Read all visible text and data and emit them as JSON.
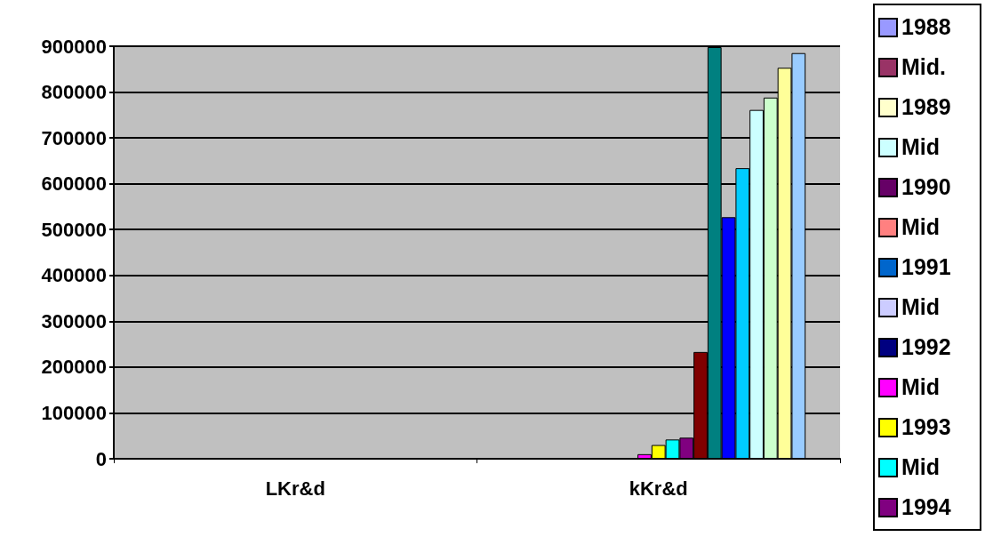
{
  "chart_data": {
    "type": "bar",
    "categories": [
      "LKr&d",
      "kKr&d"
    ],
    "series": [
      {
        "name": "1988",
        "color": "#9999ff",
        "values": [
          0,
          0
        ]
      },
      {
        "name": "Mid.",
        "color": "#993366",
        "values": [
          0,
          0
        ]
      },
      {
        "name": "1989",
        "color": "#ffffcc",
        "values": [
          0,
          0
        ]
      },
      {
        "name": "Mid",
        "color": "#ccffff",
        "values": [
          0,
          0
        ]
      },
      {
        "name": "1990",
        "color": "#660066",
        "values": [
          0,
          0
        ]
      },
      {
        "name": "Mid",
        "color": "#ff8080",
        "values": [
          0,
          0
        ]
      },
      {
        "name": "1991",
        "color": "#0066cc",
        "values": [
          0,
          0
        ]
      },
      {
        "name": "Mid",
        "color": "#ccccff",
        "values": [
          0,
          0
        ]
      },
      {
        "name": "1992",
        "color": "#000080",
        "values": [
          0,
          0
        ]
      },
      {
        "name": "Mid",
        "color": "#ff00ff",
        "values": [
          0,
          10000
        ]
      },
      {
        "name": "1993",
        "color": "#ffff00",
        "values": [
          0,
          30000
        ]
      },
      {
        "name": "Mid",
        "color": "#00ffff",
        "values": [
          0,
          42000
        ]
      },
      {
        "name": "1994",
        "color": "#800080",
        "values": [
          0,
          46000
        ]
      },
      {
        "color": "#800000",
        "values": [
          0,
          233000
        ]
      },
      {
        "color": "#008080",
        "values": [
          0,
          898000
        ]
      },
      {
        "color": "#0000ff",
        "values": [
          0,
          527000
        ]
      },
      {
        "color": "#00ccff",
        "values": [
          0,
          634000
        ]
      },
      {
        "color": "#ccffff",
        "values": [
          0,
          761000
        ]
      },
      {
        "color": "#ccffcc",
        "values": [
          0,
          788000
        ]
      },
      {
        "color": "#ffff99",
        "values": [
          0,
          853000
        ]
      },
      {
        "color": "#99ccff",
        "values": [
          0,
          885000
        ]
      }
    ],
    "ylim": [
      0,
      900000
    ],
    "yticks": [
      0,
      100000,
      200000,
      300000,
      400000,
      500000,
      600000,
      700000,
      800000,
      900000
    ],
    "grid": true,
    "legend": "right"
  }
}
